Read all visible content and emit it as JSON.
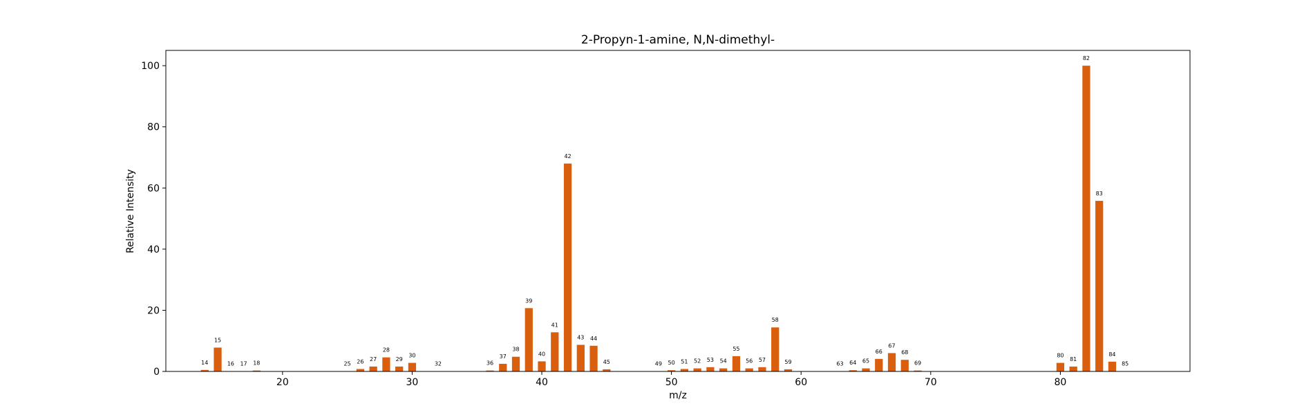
{
  "chart_data": {
    "type": "bar",
    "title": "2-Propyn-1-amine, N,N-dimethyl-",
    "xlabel": "m/z",
    "ylabel": "Relative Intensity",
    "xlim": [
      11,
      90
    ],
    "ylim": [
      0,
      105
    ],
    "xticks": [
      20,
      30,
      40,
      50,
      60,
      70,
      80
    ],
    "yticks": [
      0,
      20,
      40,
      60,
      80,
      100
    ],
    "bar_color": "#d95f0e",
    "grid": false,
    "x": [
      14,
      15,
      16,
      17,
      18,
      25,
      26,
      27,
      28,
      29,
      30,
      32,
      36,
      37,
      38,
      39,
      40,
      41,
      42,
      43,
      44,
      45,
      49,
      50,
      51,
      52,
      53,
      54,
      55,
      56,
      57,
      58,
      59,
      63,
      64,
      65,
      66,
      67,
      68,
      69,
      80,
      81,
      82,
      83,
      84,
      85
    ],
    "values": [
      0.5,
      7.8,
      0.1,
      0.1,
      0.3,
      0.1,
      0.8,
      1.6,
      4.6,
      1.6,
      2.8,
      0.1,
      0.3,
      2.5,
      4.8,
      20.7,
      3.3,
      12.8,
      68.0,
      8.7,
      8.4,
      0.7,
      0.1,
      0.4,
      0.8,
      1.0,
      1.4,
      1.0,
      5.0,
      1.0,
      1.4,
      14.4,
      0.7,
      0.1,
      0.4,
      1.0,
      4.1,
      6.0,
      3.8,
      0.3,
      2.8,
      1.6,
      100.0,
      55.8,
      3.2,
      0.1
    ]
  }
}
